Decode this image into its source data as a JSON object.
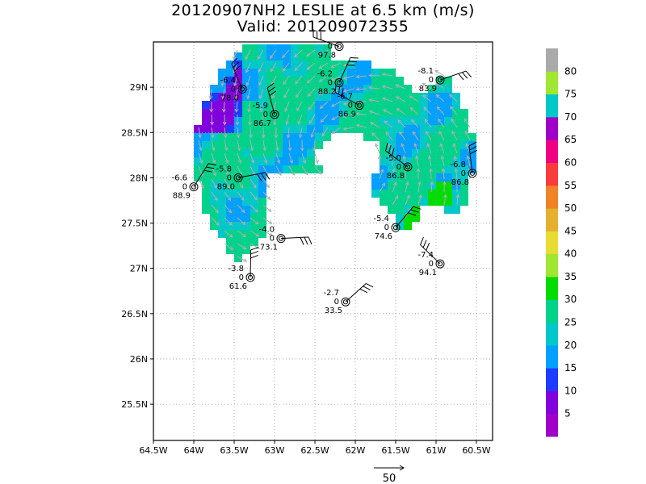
{
  "chart_data": {
    "type": "heatmap",
    "title": "20120907NH2 LESLIE at 6.5 km (m/s)",
    "subtitle": "Valid: 201209072355",
    "xlim": [
      -64.5,
      -60.3
    ],
    "ylim": [
      25.1,
      29.5
    ],
    "x_ticks": [
      {
        "value": -64.5,
        "label": "64.5W"
      },
      {
        "value": -64.0,
        "label": "64W"
      },
      {
        "value": -63.5,
        "label": "63.5W"
      },
      {
        "value": -63.0,
        "label": "63W"
      },
      {
        "value": -62.5,
        "label": "62.5W"
      },
      {
        "value": -62.0,
        "label": "62W"
      },
      {
        "value": -61.5,
        "label": "61.5W"
      },
      {
        "value": -61.0,
        "label": "61W"
      },
      {
        "value": -60.5,
        "label": "60.5W"
      }
    ],
    "y_ticks": [
      {
        "value": 25.5,
        "label": "25.5N"
      },
      {
        "value": 26.0,
        "label": "26N"
      },
      {
        "value": 26.5,
        "label": "26.5N"
      },
      {
        "value": 27.0,
        "label": "27N"
      },
      {
        "value": 27.5,
        "label": "27.5N"
      },
      {
        "value": 28.0,
        "label": "28N"
      },
      {
        "value": 28.5,
        "label": "28.5N"
      },
      {
        "value": 29.0,
        "label": "29N"
      }
    ],
    "colorbar": {
      "labels": [
        "5",
        "10",
        "15",
        "20",
        "25",
        "30",
        "35",
        "40",
        "45",
        "50",
        "55",
        "60",
        "65",
        "70",
        "75",
        "80"
      ],
      "colors": [
        "#a000c8",
        "#8200dc",
        "#1e3cff",
        "#00a0ff",
        "#00c8c8",
        "#00d28c",
        "#00dc00",
        "#a0e632",
        "#e6dc32",
        "#e6af2d",
        "#f08228",
        "#fa3c3c",
        "#f00082",
        "#a000c8",
        "#00c8c8",
        "#a0e632",
        "#aaaaaa"
      ]
    },
    "reference_vector": {
      "label": "50",
      "speed": 50
    },
    "stations": [
      {
        "lon": -62.2,
        "lat": 29.45,
        "top": "",
        "mid": "0",
        "bottom": "97.8"
      },
      {
        "lon": -63.4,
        "lat": 28.98,
        "top": "-6.4",
        "mid": "0",
        "bottom": "78.0"
      },
      {
        "lon": -62.2,
        "lat": 29.05,
        "top": "-6.2",
        "mid": "0",
        "bottom": "88.2"
      },
      {
        "lon": -60.95,
        "lat": 29.08,
        "top": "-8.1",
        "mid": "0",
        "bottom": "83.9"
      },
      {
        "lon": -61.95,
        "lat": 28.8,
        "top": "-6.7",
        "mid": "0",
        "bottom": "86.9"
      },
      {
        "lon": -63.0,
        "lat": 28.7,
        "top": "-5.9",
        "mid": "0",
        "bottom": "86.7"
      },
      {
        "lon": -64.0,
        "lat": 27.9,
        "top": "-6.6",
        "mid": "0",
        "bottom": "88.9"
      },
      {
        "lon": -63.45,
        "lat": 28.0,
        "top": "-5.8",
        "mid": "0",
        "bottom": "89.0"
      },
      {
        "lon": -61.35,
        "lat": 28.12,
        "top": "-5.0",
        "mid": "0",
        "bottom": "86.8"
      },
      {
        "lon": -60.55,
        "lat": 28.05,
        "top": "-6.8",
        "mid": "0",
        "bottom": "86.8"
      },
      {
        "lon": -61.5,
        "lat": 27.45,
        "top": "-5.4",
        "mid": "0",
        "bottom": "74.6"
      },
      {
        "lon": -62.92,
        "lat": 27.33,
        "top": "-4.0",
        "mid": "0",
        "bottom": "73.1"
      },
      {
        "lon": -60.95,
        "lat": 27.05,
        "top": "-7.4",
        "mid": "0",
        "bottom": "94.1"
      },
      {
        "lon": -63.3,
        "lat": 26.9,
        "top": "-3.8",
        "mid": "0",
        "bottom": "61.6"
      },
      {
        "lon": -62.12,
        "lat": 26.63,
        "top": "-2.7",
        "mid": "0",
        "bottom": "33.5"
      }
    ]
  }
}
